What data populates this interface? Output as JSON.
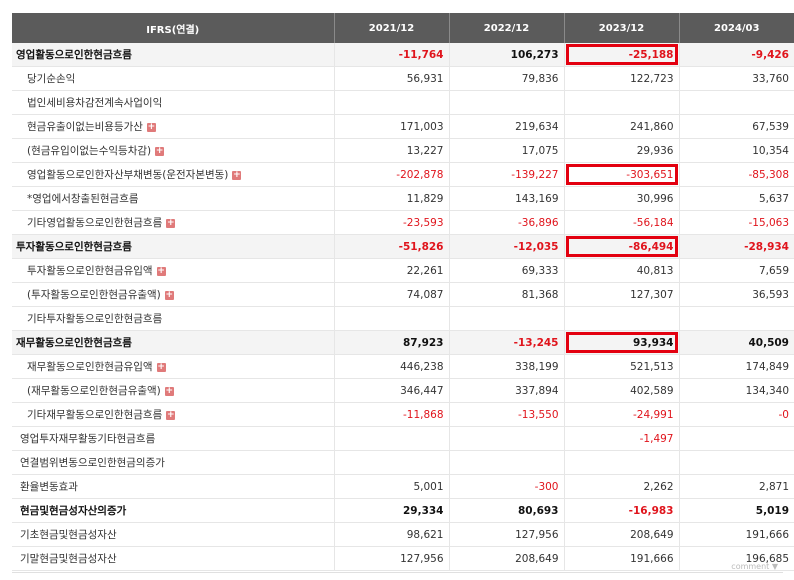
{
  "table": {
    "header": {
      "label": "IFRS(연결)",
      "periods": [
        "2021/12",
        "2022/12",
        "2023/12",
        "2024/03"
      ]
    },
    "rows": [
      {
        "label": "영업활동으로인한현금흐름",
        "type": "major",
        "plus": false,
        "values": [
          "-11,764",
          "106,273",
          "-25,188",
          "-9,426"
        ],
        "highlight": [
          false,
          false,
          true,
          false
        ]
      },
      {
        "label": "당기순손익",
        "type": "sub",
        "plus": false,
        "values": [
          "56,931",
          "79,836",
          "122,723",
          "33,760"
        ],
        "highlight": [
          false,
          false,
          false,
          false
        ]
      },
      {
        "label": "법인세비용차감전계속사업이익",
        "type": "sub",
        "plus": false,
        "values": [
          "",
          "",
          "",
          ""
        ],
        "highlight": [
          false,
          false,
          false,
          false
        ]
      },
      {
        "label": "현금유출이없는비용등가산",
        "type": "sub",
        "plus": true,
        "values": [
          "171,003",
          "219,634",
          "241,860",
          "67,539"
        ],
        "highlight": [
          false,
          false,
          false,
          false
        ]
      },
      {
        "label": "(현금유입이없는수익등차감)",
        "type": "sub",
        "plus": true,
        "values": [
          "13,227",
          "17,075",
          "29,936",
          "10,354"
        ],
        "highlight": [
          false,
          false,
          false,
          false
        ]
      },
      {
        "label": "영업활동으로인한자산부채변동(운전자본변동)",
        "type": "sub",
        "plus": true,
        "values": [
          "-202,878",
          "-139,227",
          "-303,651",
          "-85,308"
        ],
        "highlight": [
          false,
          false,
          true,
          false
        ]
      },
      {
        "label": "*영업에서창출된현금흐름",
        "type": "sub",
        "plus": false,
        "values": [
          "11,829",
          "143,169",
          "30,996",
          "5,637"
        ],
        "highlight": [
          false,
          false,
          false,
          false
        ]
      },
      {
        "label": "기타영업활동으로인한현금흐름",
        "type": "sub",
        "plus": true,
        "values": [
          "-23,593",
          "-36,896",
          "-56,184",
          "-15,063"
        ],
        "highlight": [
          false,
          false,
          false,
          false
        ]
      },
      {
        "label": "투자활동으로인한현금흐름",
        "type": "major",
        "plus": false,
        "values": [
          "-51,826",
          "-12,035",
          "-86,494",
          "-28,934"
        ],
        "highlight": [
          false,
          false,
          true,
          false
        ]
      },
      {
        "label": "투자활동으로인한현금유입액",
        "type": "sub",
        "plus": true,
        "values": [
          "22,261",
          "69,333",
          "40,813",
          "7,659"
        ],
        "highlight": [
          false,
          false,
          false,
          false
        ]
      },
      {
        "label": "(투자활동으로인한현금유출액)",
        "type": "sub",
        "plus": true,
        "values": [
          "74,087",
          "81,368",
          "127,307",
          "36,593"
        ],
        "highlight": [
          false,
          false,
          false,
          false
        ]
      },
      {
        "label": "기타투자활동으로인한현금흐름",
        "type": "sub",
        "plus": false,
        "values": [
          "",
          "",
          "",
          ""
        ],
        "highlight": [
          false,
          false,
          false,
          false
        ]
      },
      {
        "label": "재무활동으로인한현금흐름",
        "type": "major",
        "plus": false,
        "values": [
          "87,923",
          "-13,245",
          "93,934",
          "40,509"
        ],
        "highlight": [
          false,
          false,
          true,
          false
        ]
      },
      {
        "label": "재무활동으로인한현금유입액",
        "type": "sub",
        "plus": true,
        "values": [
          "446,238",
          "338,199",
          "521,513",
          "174,849"
        ],
        "highlight": [
          false,
          false,
          false,
          false
        ]
      },
      {
        "label": "(재무활동으로인한현금유출액)",
        "type": "sub",
        "plus": true,
        "values": [
          "346,447",
          "337,894",
          "402,589",
          "134,340"
        ],
        "highlight": [
          false,
          false,
          false,
          false
        ]
      },
      {
        "label": "기타재무활동으로인한현금흐름",
        "type": "sub",
        "plus": true,
        "values": [
          "-11,868",
          "-13,550",
          "-24,991",
          "-0"
        ],
        "highlight": [
          false,
          false,
          false,
          false
        ]
      },
      {
        "label": "영업투자재무활동기타현금흐름",
        "type": "plain",
        "plus": false,
        "values": [
          "",
          "",
          "-1,497",
          ""
        ],
        "highlight": [
          false,
          false,
          false,
          false
        ]
      },
      {
        "label": "연결범위변동으로인한현금의증가",
        "type": "plain",
        "plus": false,
        "values": [
          "",
          "",
          "",
          ""
        ],
        "highlight": [
          false,
          false,
          false,
          false
        ]
      },
      {
        "label": "환율변동효과",
        "type": "plain",
        "plus": false,
        "values": [
          "5,001",
          "-300",
          "2,262",
          "2,871"
        ],
        "highlight": [
          false,
          false,
          false,
          false
        ]
      },
      {
        "label": "현금및현금성자산의증가",
        "type": "plainbold",
        "plus": false,
        "values": [
          "29,334",
          "80,693",
          "-16,983",
          "5,019"
        ],
        "highlight": [
          false,
          false,
          false,
          false
        ]
      },
      {
        "label": "기초현금및현금성자산",
        "type": "plain",
        "plus": false,
        "values": [
          "98,621",
          "127,956",
          "208,649",
          "191,666"
        ],
        "highlight": [
          false,
          false,
          false,
          false
        ]
      },
      {
        "label": "기말현금및현금성자산",
        "type": "plain",
        "plus": false,
        "values": [
          "127,956",
          "208,649",
          "191,666",
          "196,685"
        ],
        "highlight": [
          false,
          false,
          false,
          false
        ]
      }
    ]
  },
  "footer": {
    "comment_label": "comment ▼"
  },
  "colors": {
    "header_bg": "#5b5b5b",
    "negative": "#e0141c",
    "highlight_border": "#e3000f",
    "plus_icon": "#e07a7a"
  }
}
